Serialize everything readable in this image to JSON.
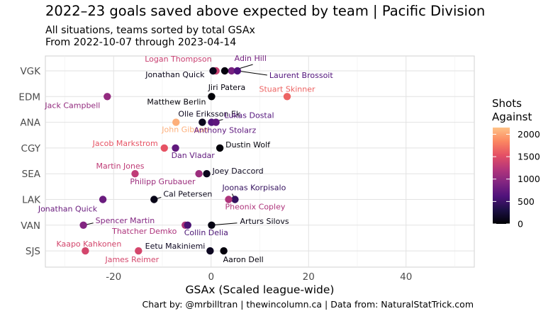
{
  "header": {
    "title": "2022–23 goals saved above expected by team | Pacific Division",
    "subtitle_1": "All situations, teams sorted by total GSAx",
    "subtitle_2": "From 2022-10-07 through 2023-04-14"
  },
  "caption": "Chart by: @mrbilltran | thewincolumn.ca | Data from: NaturalStatTrick.com",
  "legend": {
    "title_line1": "Shots",
    "title_line2": "Against",
    "ticks": [
      0,
      500,
      1000,
      1500,
      2000
    ],
    "domain": [
      0,
      2150
    ],
    "colors": [
      "#000004",
      "#1c1044",
      "#4f127b",
      "#812581",
      "#b5367a",
      "#e55064",
      "#fb8761",
      "#fec287"
    ]
  },
  "chart_data": {
    "type": "scatter",
    "xlabel": "GSAx (Scaled league-wide)",
    "ylabel": "",
    "xlim": [
      -34,
      54
    ],
    "xticks": [
      -20,
      0,
      20,
      40
    ],
    "grid": true,
    "categories": [
      "VGK",
      "EDM",
      "ANA",
      "CGY",
      "SEA",
      "LAK",
      "VAN",
      "SJS"
    ],
    "points": [
      {
        "team": "VGK",
        "name": "Logan Thompson",
        "gsax": 1.0,
        "shots": 1350
      },
      {
        "team": "VGK",
        "name": "Adin Hill",
        "gsax": 4.2,
        "shots": 850
      },
      {
        "team": "VGK",
        "name": "Jonathan Quick",
        "gsax": 0.4,
        "shots": 100
      },
      {
        "team": "VGK",
        "name": "Jiri Patera",
        "gsax": 2.8,
        "shots": 50
      },
      {
        "team": "VGK",
        "name": "Laurent Brossoit",
        "gsax": 5.4,
        "shots": 620
      },
      {
        "team": "EDM",
        "name": "Stuart Skinner",
        "gsax": 15.6,
        "shots": 1650
      },
      {
        "team": "EDM",
        "name": "Jack Campbell",
        "gsax": -21.3,
        "shots": 1030
      },
      {
        "team": "EDM",
        "name": "Matthew Berlin",
        "gsax": 0.1,
        "shots": 20
      },
      {
        "team": "ANA",
        "name": "John Gibson",
        "gsax": -7.2,
        "shots": 2050
      },
      {
        "team": "ANA",
        "name": "Olle Eriksson Ek",
        "gsax": -1.8,
        "shots": 120
      },
      {
        "team": "ANA",
        "name": "Lukas Dostal",
        "gsax": 0.1,
        "shots": 640
      },
      {
        "team": "ANA",
        "name": "Anthony Stolarz",
        "gsax": 1.0,
        "shots": 700
      },
      {
        "team": "CGY",
        "name": "Jacob Markstrom",
        "gsax": -9.6,
        "shots": 1550
      },
      {
        "team": "CGY",
        "name": "Dan Vladar",
        "gsax": -7.3,
        "shots": 720
      },
      {
        "team": "CGY",
        "name": "Dustin Wolf",
        "gsax": 1.8,
        "shots": 30
      },
      {
        "team": "SEA",
        "name": "Martin Jones",
        "gsax": -15.6,
        "shots": 1290
      },
      {
        "team": "SEA",
        "name": "Philipp Grubauer",
        "gsax": -2.5,
        "shots": 1080
      },
      {
        "team": "SEA",
        "name": "Joey Daccord",
        "gsax": -0.9,
        "shots": 120
      },
      {
        "team": "LAK",
        "name": "Jonathan Quick",
        "gsax": -22.2,
        "shots": 780
      },
      {
        "team": "LAK",
        "name": "Cal Petersen",
        "gsax": -11.7,
        "shots": 90
      },
      {
        "team": "LAK",
        "name": "Joonas Korpisalo",
        "gsax": 4.9,
        "shots": 450
      },
      {
        "team": "LAK",
        "name": "Pheonix Copley",
        "gsax": 3.6,
        "shots": 1190
      },
      {
        "team": "VAN",
        "name": "Spencer Martin",
        "gsax": -26.2,
        "shots": 930
      },
      {
        "team": "VAN",
        "name": "Thatcher Demko",
        "gsax": -5.3,
        "shots": 1180
      },
      {
        "team": "VAN",
        "name": "Collin Delia",
        "gsax": -4.8,
        "shots": 570
      },
      {
        "team": "VAN",
        "name": "Arturs Silovs",
        "gsax": 0.1,
        "shots": 70
      },
      {
        "team": "SJS",
        "name": "Kaapo Kahkonen",
        "gsax": -25.8,
        "shots": 1420
      },
      {
        "team": "SJS",
        "name": "James Reimer",
        "gsax": -14.9,
        "shots": 1430
      },
      {
        "team": "SJS",
        "name": "Eetu Makiniemi",
        "gsax": -0.2,
        "shots": 140
      },
      {
        "team": "SJS",
        "name": "Aaron Dell",
        "gsax": 2.6,
        "shots": 40
      }
    ]
  }
}
